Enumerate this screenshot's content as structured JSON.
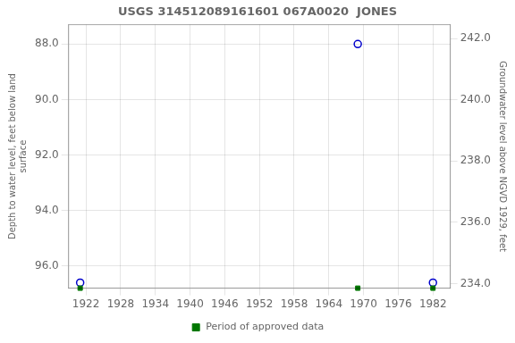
{
  "chart_data": {
    "type": "scatter",
    "title": "USGS 314512089161601 067A0020  JONES",
    "y_label": "Depth to water level, feet below land\nsurface",
    "y2_label": "Groundwater level above NGVD 1929, feet",
    "xlim": [
      1919,
      1985
    ],
    "xticks": [
      1922,
      1928,
      1934,
      1940,
      1946,
      1952,
      1958,
      1964,
      1970,
      1976,
      1982
    ],
    "ylim": [
      96.8,
      87.3
    ],
    "yticks": [
      {
        "value": 88.0,
        "label": "88.0"
      },
      {
        "value": 90.0,
        "label": "90.0"
      },
      {
        "value": 92.0,
        "label": "92.0"
      },
      {
        "value": 94.0,
        "label": "94.0"
      },
      {
        "value": 96.0,
        "label": "96.0"
      }
    ],
    "y2lim": [
      233.85,
      242.45
    ],
    "y2ticks": [
      {
        "value": 242.0,
        "label": "242.0"
      },
      {
        "value": 240.0,
        "label": "240.0"
      },
      {
        "value": 238.0,
        "label": "238.0"
      },
      {
        "value": 236.0,
        "label": "236.0"
      },
      {
        "value": 234.0,
        "label": "234.0"
      }
    ],
    "grid": true,
    "legend": "bottom",
    "series": [
      {
        "color": "#0000cc",
        "marker": "circle",
        "x": [
          1921,
          1969,
          1982
        ],
        "values": [
          96.6,
          88.0,
          96.6
        ]
      },
      {
        "name": "Period of approved data",
        "color": "#007700",
        "marker": "square",
        "x": [
          1921,
          1969,
          1982
        ],
        "values": [
          96.8,
          96.8,
          96.8
        ]
      }
    ]
  }
}
